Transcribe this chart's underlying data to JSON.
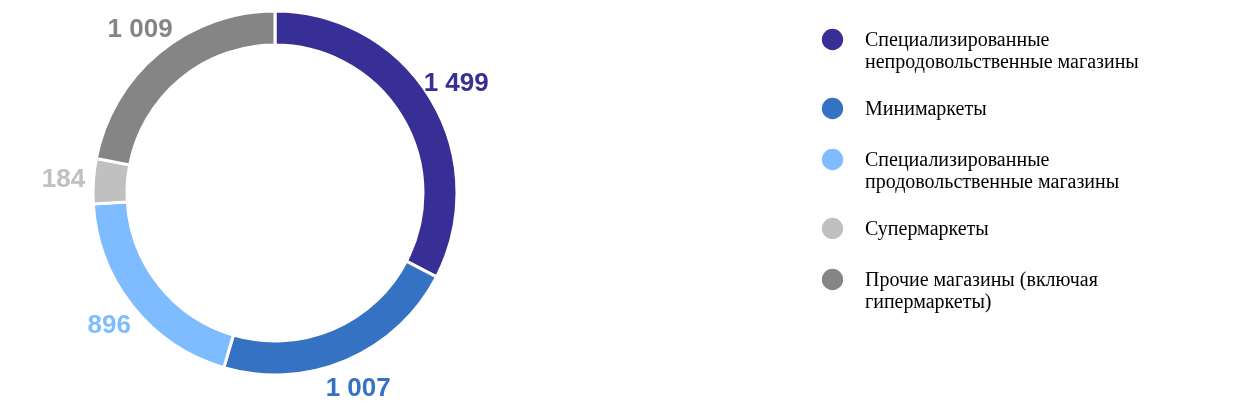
{
  "chart_data": {
    "type": "donut",
    "categories": [
      "Специализированные непродовольственные магазины",
      "Минимаркеты",
      "Специализированные продовольственные магазины",
      "Супермаркеты",
      "Прочие магазины (включая гипермаркеты)"
    ],
    "values": [
      1499,
      1007,
      896,
      184,
      1009
    ],
    "value_labels": [
      "1 499",
      "1 007",
      "896",
      "184",
      "1 009"
    ],
    "colors": [
      "#372f96",
      "#3572c4",
      "#7fbcff",
      "#c0c0c0",
      "#858585"
    ],
    "legend": "right"
  }
}
